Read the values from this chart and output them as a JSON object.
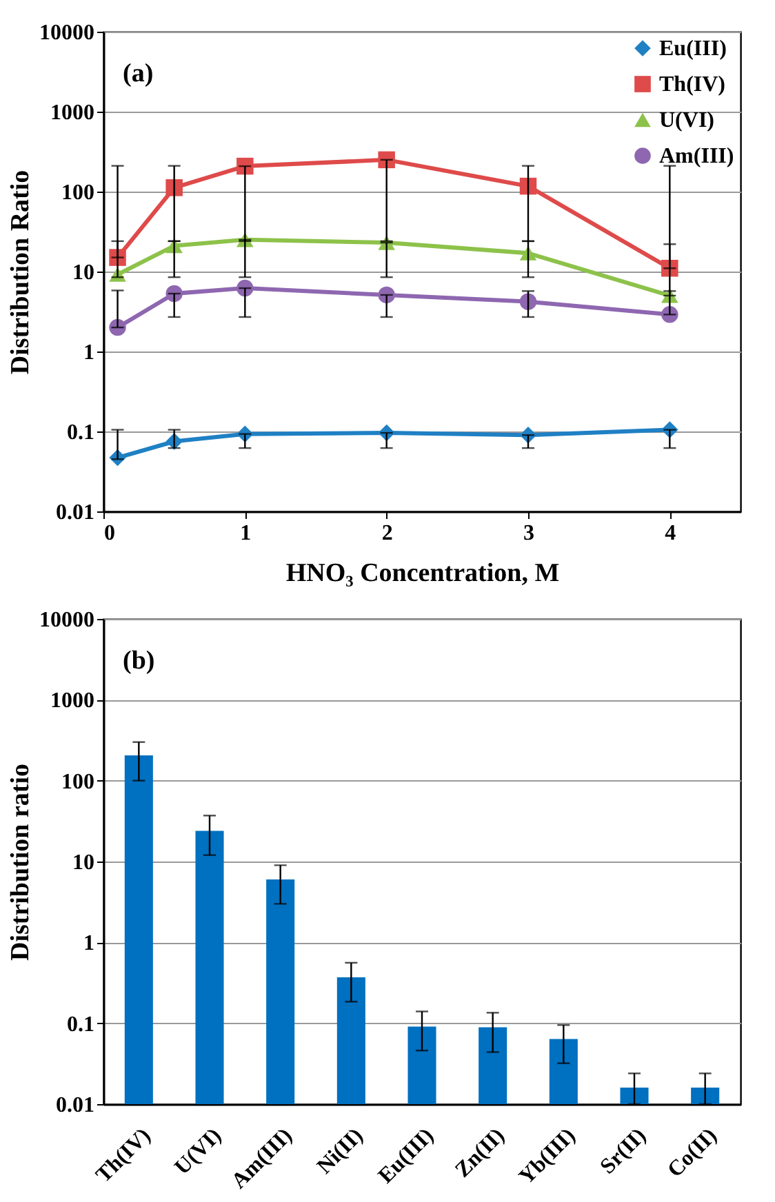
{
  "chart_data": [
    {
      "type": "line",
      "xlabel": "HNO₃ Concentration, M",
      "ylabel": "Distribution Ratio",
      "annotations": [
        "(a)"
      ],
      "x": [
        0.1,
        0.5,
        1,
        2,
        3,
        4
      ],
      "series": [
        {
          "name": "Eu(III)",
          "color": "#1f80c4",
          "marker": "diamond",
          "values": [
            0.047,
            0.075,
            0.093,
            0.096,
            0.09,
            0.105
          ],
          "errors": [
            [
              0.045,
              0.105
            ],
            [
              0.062,
              0.105
            ],
            [
              0.062,
              0.093
            ],
            [
              0.062,
              0.096
            ],
            [
              0.062,
              0.09
            ],
            [
              0.062,
              0.105
            ]
          ]
        },
        {
          "name": "Th(IV)",
          "color": "#df4a4a",
          "marker": "square",
          "values": [
            15,
            112,
            208,
            250,
            117,
            11
          ],
          "errors": [
            [
              15,
              210
            ],
            [
              24,
              210
            ],
            [
              24,
              208
            ],
            [
              24,
              250
            ],
            [
              24,
              210
            ],
            [
              11,
              210
            ]
          ]
        },
        {
          "name": "U(VI)",
          "color": "#8dc24a",
          "marker": "triangle",
          "values": [
            9.2,
            21,
            25,
            23,
            17,
            5
          ],
          "errors": [
            [
              8.5,
              24
            ],
            [
              8.5,
              24
            ],
            [
              8.5,
              25
            ],
            [
              8.5,
              23
            ],
            [
              8.5,
              24
            ],
            [
              5,
              22
            ]
          ]
        },
        {
          "name": "Am(III)",
          "color": "#8e67b0",
          "marker": "circle",
          "values": [
            2,
            5.3,
            6.2,
            5.1,
            4.2,
            2.9
          ],
          "errors": [
            [
              2,
              5.8
            ],
            [
              2.7,
              5.3
            ],
            [
              2.7,
              6.2
            ],
            [
              2.7,
              5.1
            ],
            [
              2.7,
              5.7
            ],
            [
              2.9,
              5.7
            ]
          ]
        }
      ],
      "xlim": [
        0,
        4.5
      ],
      "xticks": [
        0,
        1,
        2,
        3,
        4
      ],
      "ylim": [
        0.01,
        10000
      ],
      "yticks": [
        0.01,
        0.1,
        1,
        10,
        100,
        1000,
        10000
      ],
      "log": true,
      "grid": "y",
      "legend": "top right"
    },
    {
      "type": "bar",
      "ylabel": "Distribution ratio",
      "annotations": [
        "(b)"
      ],
      "categories": [
        "Th(IV)",
        "U(VI)",
        "Am(III)",
        "Ni(II)",
        "Eu(III)",
        "Zn(II)",
        "Yb(III)",
        "Sr(II)",
        "Co(II)"
      ],
      "series": [
        {
          "color": "#0070c0",
          "values": [
            205,
            24,
            6,
            0.37,
            0.091,
            0.089,
            0.064,
            0.016,
            0.016
          ],
          "errors": [
            [
              100,
              300
            ],
            [
              12,
              37
            ],
            [
              3,
              9
            ],
            [
              0.185,
              0.56
            ],
            [
              0.046,
              0.14
            ],
            [
              0.044,
              0.135
            ],
            [
              0.032,
              0.095
            ],
            [
              0.01,
              0.024
            ],
            [
              0.01,
              0.024
            ]
          ]
        }
      ],
      "ylim": [
        0.01,
        10000
      ],
      "yticks": [
        0.01,
        0.1,
        1,
        10,
        100,
        1000,
        10000
      ],
      "log": true,
      "grid": "y"
    }
  ]
}
